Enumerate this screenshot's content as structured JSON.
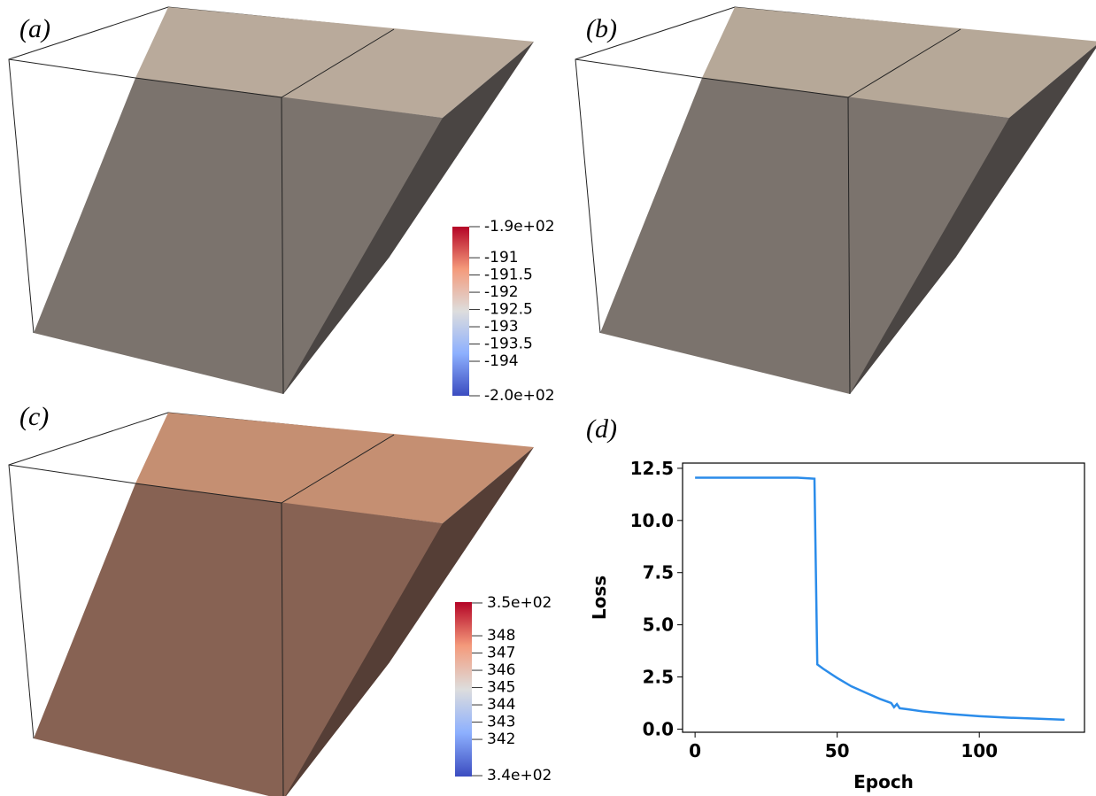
{
  "panels": [
    {
      "label": "(a)",
      "colorbar": {
        "lim": [
          -195.0,
          -190.1
        ],
        "ticks": [
          {
            "value": -190.1,
            "label": "-1.9e+02"
          },
          -191,
          -191.5,
          -192,
          -192.5,
          -193,
          -193.5,
          -194,
          {
            "value": -195.0,
            "label": "-2.0e+02"
          }
        ]
      }
    },
    {
      "label": "(b)"
    },
    {
      "label": "(c)",
      "colorbar": {
        "lim": [
          339.85,
          349.95
        ],
        "ticks": [
          {
            "value": 349.9,
            "label": "3.5e+02"
          },
          348,
          347,
          346,
          345,
          344,
          343,
          342,
          {
            "value": 339.9,
            "label": "3.4e+02"
          }
        ]
      }
    },
    {
      "label": "(d)"
    }
  ],
  "chart_data": {
    "type": "line",
    "xlabel": "Epoch",
    "ylabel": "Loss",
    "x": [
      0,
      10,
      20,
      30,
      36,
      40,
      42,
      43,
      45,
      50,
      55,
      60,
      65,
      68,
      69,
      70,
      71,
      72,
      75,
      80,
      90,
      100,
      110,
      120,
      130
    ],
    "series": [
      {
        "name": "Loss",
        "color": "#2b8cea",
        "values": [
          12.05,
          12.05,
          12.05,
          12.05,
          12.05,
          12.02,
          12.0,
          3.1,
          2.9,
          2.45,
          2.05,
          1.75,
          1.45,
          1.3,
          1.25,
          1.05,
          1.2,
          1.0,
          0.95,
          0.85,
          0.72,
          0.62,
          0.55,
          0.5,
          0.45
        ]
      }
    ],
    "xlim": [
      -4.4,
      137
    ],
    "ylim": [
      -0.15,
      12.75
    ],
    "xticks": [
      0,
      50,
      100
    ],
    "yticks": [
      {
        "value": 0,
        "label": "0.0"
      },
      2.5,
      {
        "value": 5,
        "label": "5.0"
      },
      7.5,
      {
        "value": 10,
        "label": "10.0"
      },
      12.5
    ]
  }
}
